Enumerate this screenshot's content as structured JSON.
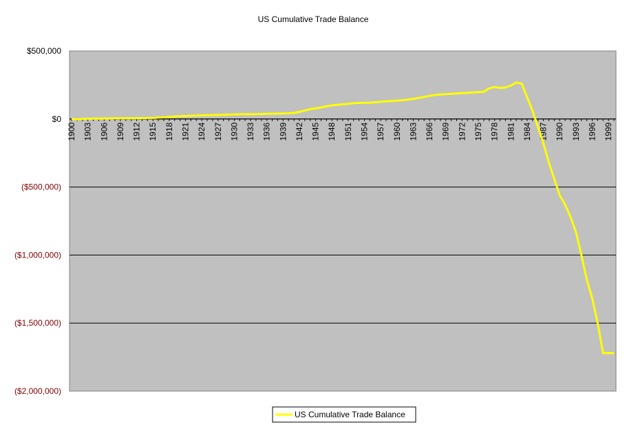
{
  "chart_data": {
    "type": "line",
    "title": "US Cumulative Trade Balance",
    "xlabel": "",
    "ylabel": "",
    "ylim": [
      -2000000,
      500000
    ],
    "y_ticks": [
      500000,
      0,
      -500000,
      -1000000,
      -1500000,
      -2000000
    ],
    "y_tick_labels": [
      "$500,000",
      "$0",
      "($500,000)",
      "($1,000,000)",
      "($1,500,000)",
      "($2,000,000)"
    ],
    "x_tick_labels": [
      "1900",
      "1903",
      "1906",
      "1909",
      "1912",
      "1915",
      "1918",
      "1921",
      "1924",
      "1927",
      "1930",
      "1933",
      "1936",
      "1939",
      "1942",
      "1945",
      "1948",
      "1951",
      "1954",
      "1957",
      "1960",
      "1963",
      "1966",
      "1969",
      "1972",
      "1975",
      "1978",
      "1981",
      "1984",
      "1987",
      "1990",
      "1993",
      "1996",
      "1999"
    ],
    "grid": "horizontal",
    "legend_position": "bottom",
    "colors": {
      "plot_background": "#c0c0c0",
      "line": "#ffff00",
      "negative_tick_label": "#800000",
      "positive_tick_label": "#000000"
    },
    "series": [
      {
        "name": "US Cumulative Trade Balance",
        "x": [
          1900,
          1901,
          1902,
          1903,
          1904,
          1905,
          1906,
          1907,
          1908,
          1909,
          1910,
          1911,
          1912,
          1913,
          1914,
          1915,
          1916,
          1917,
          1918,
          1919,
          1920,
          1921,
          1922,
          1923,
          1924,
          1925,
          1926,
          1927,
          1928,
          1929,
          1930,
          1931,
          1932,
          1933,
          1934,
          1935,
          1936,
          1937,
          1938,
          1939,
          1940,
          1941,
          1942,
          1943,
          1944,
          1945,
          1946,
          1947,
          1948,
          1949,
          1950,
          1951,
          1952,
          1953,
          1954,
          1955,
          1956,
          1957,
          1958,
          1959,
          1960,
          1961,
          1962,
          1963,
          1964,
          1965,
          1966,
          1967,
          1968,
          1969,
          1970,
          1971,
          1972,
          1973,
          1974,
          1975,
          1976,
          1977,
          1978,
          1979,
          1980,
          1981,
          1982,
          1983,
          1984,
          1985,
          1986,
          1987,
          1988,
          1989,
          1990,
          1991,
          1992,
          1993,
          1994,
          1995,
          1996,
          1997,
          1998,
          1999,
          2000
        ],
        "values": [
          0,
          -2000,
          1000,
          2000,
          3000,
          3000,
          4000,
          4000,
          5000,
          5000,
          5000,
          5000,
          6000,
          6000,
          7000,
          7000,
          10000,
          12000,
          15000,
          18000,
          20000,
          22000,
          24000,
          25000,
          27000,
          28000,
          29000,
          30000,
          31000,
          32000,
          34000,
          35000,
          35000,
          35000,
          36000,
          37000,
          38000,
          39000,
          40000,
          40000,
          42000,
          45000,
          52000,
          62000,
          72000,
          78000,
          85000,
          93000,
          100000,
          104000,
          108000,
          112000,
          116000,
          118000,
          119000,
          120000,
          123000,
          127000,
          130000,
          132000,
          135000,
          138000,
          142000,
          148000,
          155000,
          162000,
          170000,
          176000,
          180000,
          182000,
          185000,
          187000,
          190000,
          193000,
          195000,
          198000,
          200000,
          225000,
          235000,
          228000,
          232000,
          245000,
          268000,
          260000,
          160000,
          60000,
          -60000,
          -180000,
          -320000,
          -440000,
          -560000,
          -630000,
          -720000,
          -830000,
          -1000000,
          -1180000,
          -1320000,
          -1500000,
          -1720000,
          -1720000,
          -1720000
        ]
      }
    ]
  }
}
